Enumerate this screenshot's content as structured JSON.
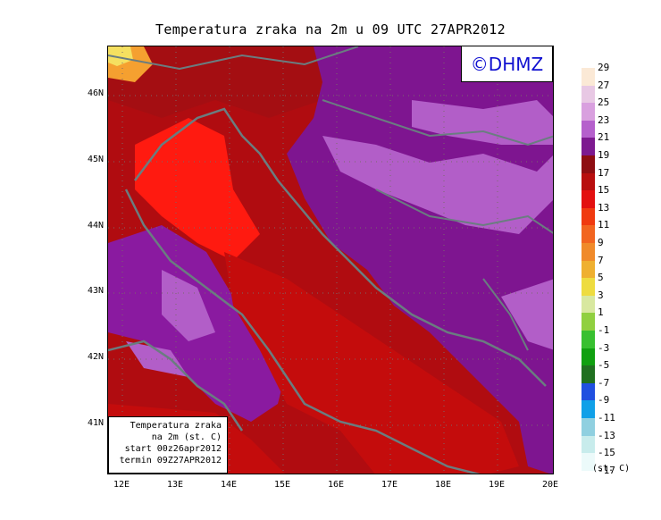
{
  "title": "Temperatura zraka na 2m u 09 UTC 27APR2012",
  "logo_text": "©DHMZ",
  "info_box": {
    "line1": "Temperatura zraka",
    "line2": "na 2m (st. C)",
    "line3": "start 00z26apr2012",
    "line4": "termin 09Z27APR2012"
  },
  "lat_labels": [
    "46N",
    "45N",
    "44N",
    "43N",
    "42N",
    "41N"
  ],
  "lon_labels": [
    "12E",
    "13E",
    "14E",
    "15E",
    "16E",
    "17E",
    "18E",
    "19E",
    "20E"
  ],
  "legend": {
    "unit": "(st. C)",
    "labels": [
      "29",
      "27",
      "25",
      "23",
      "21",
      "19",
      "17",
      "15",
      "13",
      "11",
      "9",
      "7",
      "5",
      "3",
      "1",
      "-1",
      "-3",
      "-5",
      "-7",
      "-9",
      "-11",
      "-13",
      "-15",
      "-17"
    ],
    "colors": [
      "#fbe9d6",
      "#e8c8e4",
      "#d9a0df",
      "#b560cc",
      "#7d1a90",
      "#8e0e12",
      "#b80e0e",
      "#e31010",
      "#f03a10",
      "#f26520",
      "#f08a2a",
      "#efb030",
      "#eedc40",
      "#d8e8a0",
      "#90d040",
      "#38c030",
      "#10a010",
      "#207020",
      "#2050e0",
      "#10a0e8",
      "#90d0e0",
      "#c8ecec",
      "#ecfafa"
    ]
  },
  "colors": {
    "land_coast": "#6a7d80",
    "sea_warm": "#c00c0c",
    "mainland": "#8a1298",
    "highland": "#c060cc",
    "hot": "#ff1a10"
  }
}
